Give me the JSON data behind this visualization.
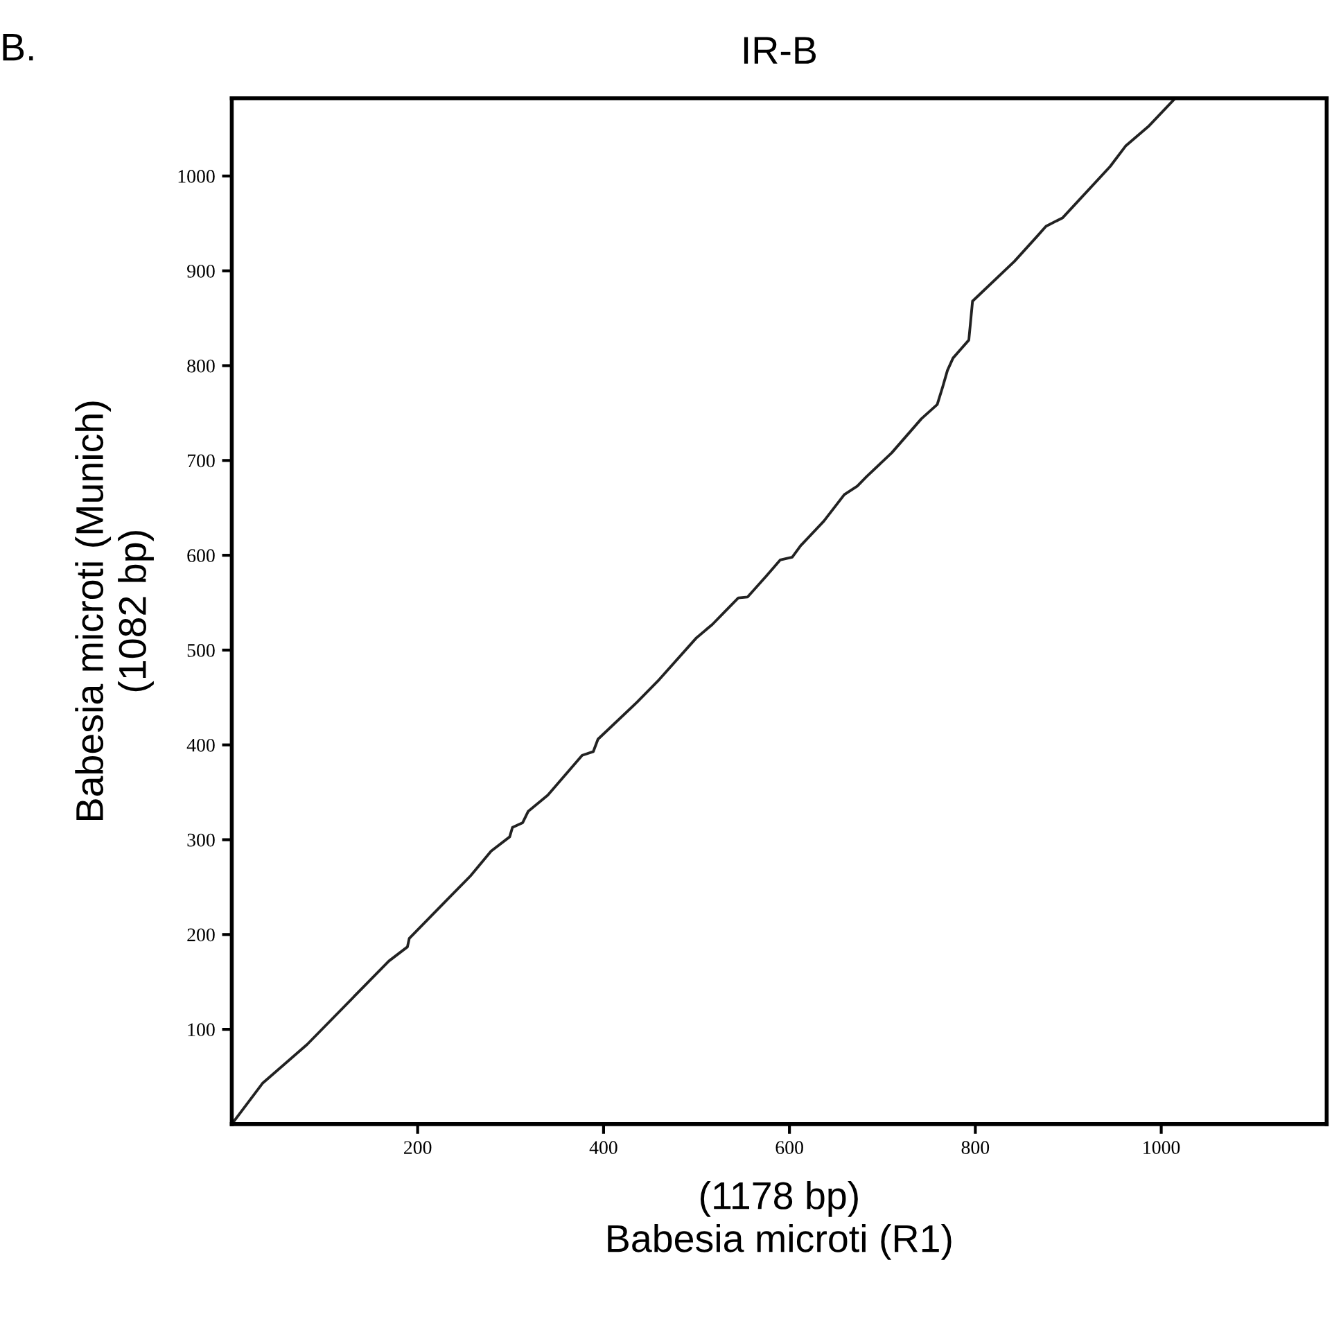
{
  "chart_data": {
    "type": "line",
    "title": "IR-B",
    "xlabel": "(1178 bp)\nBabesia microti (R1)",
    "ylabel": "Babesia microti (Munich)\n(1082 bp)",
    "annotations": [
      "B."
    ],
    "x": [
      0,
      33,
      81,
      132,
      169,
      189,
      191,
      230,
      257,
      279,
      299,
      302,
      313,
      319,
      340,
      377,
      389,
      394,
      436,
      460,
      500,
      517,
      530,
      545,
      555,
      575,
      590,
      603,
      612,
      637,
      659,
      673,
      683,
      710,
      742,
      759,
      765,
      770,
      776,
      793,
      797,
      842,
      867,
      876,
      894,
      945,
      962,
      987,
      1015
    ],
    "series": [
      {
        "color": "#222222",
        "values": [
          0,
          43,
          84,
          135,
          172,
          187,
          196,
          235,
          262,
          288,
          303,
          313,
          318,
          330,
          347,
          389,
          393,
          406,
          445,
          469,
          513,
          527,
          540,
          555,
          556,
          578,
          595,
          598,
          610,
          636,
          664,
          673,
          683,
          708,
          744,
          759,
          778,
          795,
          808,
          827,
          868,
          910,
          937,
          947,
          956,
          1010,
          1032,
          1053,
          1082
        ]
      }
    ],
    "xlim": [
      0,
      1178
    ],
    "ylim": [
      0,
      1082
    ],
    "xticks": [
      200,
      400,
      600,
      800,
      1000
    ],
    "yticks": [
      100,
      200,
      300,
      400,
      500,
      600,
      700,
      800,
      900,
      1000
    ],
    "grid": false,
    "legend": false,
    "marker": "none",
    "line_style": "solid"
  }
}
